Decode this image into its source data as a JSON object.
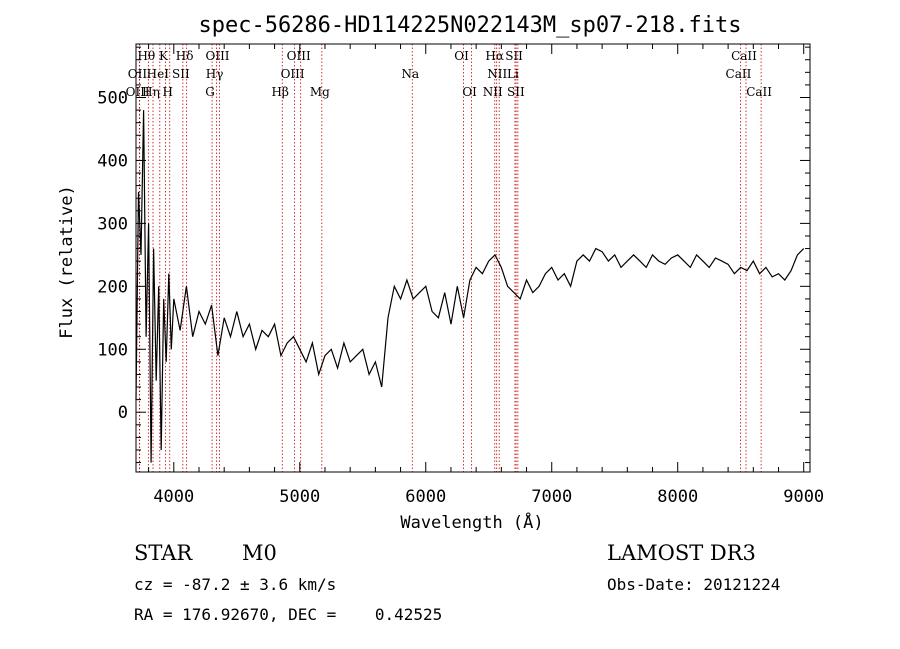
{
  "chart_data": {
    "type": "line",
    "title": "spec-56286-HD114225N022143M_sp07-218.fits",
    "xlabel": "Wavelength (Å)",
    "ylabel": "Flux (relative)",
    "xlim": [
      3700,
      9050
    ],
    "ylim": [
      -95,
      585
    ],
    "xticks": [
      4000,
      5000,
      6000,
      7000,
      8000,
      9000
    ],
    "yticks": [
      0,
      100,
      200,
      300,
      400,
      500
    ],
    "grid": false,
    "series": [
      {
        "x": [
          3700,
          3720,
          3740,
          3760,
          3780,
          3800,
          3820,
          3840,
          3860,
          3880,
          3900,
          3920,
          3940,
          3960,
          3980,
          4000,
          4050,
          4100,
          4150,
          4200,
          4250,
          4300,
          4350,
          4400,
          4450,
          4500,
          4550,
          4600,
          4650,
          4700,
          4750,
          4800,
          4850,
          4900,
          4950,
          5000,
          5050,
          5100,
          5150,
          5200,
          5250,
          5300,
          5350,
          5400,
          5450,
          5500,
          5550,
          5600,
          5650,
          5700,
          5750,
          5800,
          5850,
          5900,
          5950,
          6000,
          6050,
          6100,
          6150,
          6200,
          6250,
          6300,
          6350,
          6400,
          6450,
          6500,
          6550,
          6600,
          6650,
          6700,
          6750,
          6800,
          6850,
          6900,
          6950,
          7000,
          7050,
          7100,
          7150,
          7200,
          7250,
          7300,
          7350,
          7400,
          7450,
          7500,
          7550,
          7600,
          7650,
          7700,
          7750,
          7800,
          7850,
          7900,
          7950,
          8000,
          8050,
          8100,
          8150,
          8200,
          8250,
          8300,
          8350,
          8400,
          8450,
          8500,
          8550,
          8600,
          8650,
          8700,
          8750,
          8800,
          8850,
          8900,
          8950,
          9000
        ],
        "y": [
          20,
          350,
          250,
          480,
          120,
          300,
          -80,
          260,
          50,
          200,
          -60,
          180,
          80,
          220,
          100,
          180,
          130,
          200,
          120,
          160,
          140,
          170,
          90,
          150,
          120,
          160,
          120,
          140,
          100,
          130,
          120,
          140,
          90,
          110,
          120,
          100,
          80,
          110,
          60,
          90,
          100,
          70,
          110,
          80,
          90,
          100,
          60,
          80,
          40,
          150,
          200,
          180,
          210,
          180,
          190,
          200,
          160,
          150,
          190,
          140,
          200,
          150,
          210,
          230,
          220,
          240,
          250,
          230,
          200,
          190,
          180,
          210,
          190,
          200,
          220,
          230,
          210,
          220,
          200,
          240,
          250,
          240,
          260,
          255,
          240,
          250,
          230,
          240,
          250,
          240,
          230,
          250,
          240,
          235,
          245,
          250,
          240,
          230,
          250,
          240,
          230,
          245,
          240,
          235,
          220,
          230,
          225,
          240,
          220,
          230,
          215,
          220,
          210,
          225,
          250,
          260
        ]
      }
    ],
    "lines": [
      {
        "name": "Hθ",
        "x": 3798,
        "row": 0
      },
      {
        "name": "K",
        "x": 3934,
        "row": 0
      },
      {
        "name": "Hδ",
        "x": 4102,
        "row": 0
      },
      {
        "name": "OIII",
        "x": 4363,
        "row": 0
      },
      {
        "name": "OIII",
        "x": 5007,
        "row": 0
      },
      {
        "name": "OI",
        "x": 6300,
        "row": 0
      },
      {
        "name": "Hα",
        "x": 6563,
        "row": 0
      },
      {
        "name": "SII",
        "x": 6717,
        "row": 0
      },
      {
        "name": "CaII",
        "x": 8542,
        "row": 0
      },
      {
        "name": "OII",
        "x": 3727,
        "row": 1
      },
      {
        "name": "HeI",
        "x": 3889,
        "row": 1
      },
      {
        "name": "SII",
        "x": 4072,
        "row": 1
      },
      {
        "name": "Hγ",
        "x": 4340,
        "row": 1
      },
      {
        "name": "OIII",
        "x": 4959,
        "row": 1
      },
      {
        "name": "Na",
        "x": 5893,
        "row": 1
      },
      {
        "name": "NII",
        "x": 6583,
        "row": 1
      },
      {
        "name": "Li",
        "x": 6708,
        "row": 1
      },
      {
        "name": "CaII",
        "x": 8498,
        "row": 1
      },
      {
        "name": "OIII",
        "x": 3729,
        "row": 2
      },
      {
        "name": "Hη",
        "x": 3835,
        "row": 2
      },
      {
        "name": "H",
        "x": 3968,
        "row": 2
      },
      {
        "name": "G",
        "x": 4304,
        "row": 2
      },
      {
        "name": "Hβ",
        "x": 4861,
        "row": 2
      },
      {
        "name": "Mg",
        "x": 5175,
        "row": 2
      },
      {
        "name": "OI",
        "x": 6364,
        "row": 2
      },
      {
        "name": "NII",
        "x": 6548,
        "row": 2
      },
      {
        "name": "SII",
        "x": 6731,
        "row": 2
      },
      {
        "name": "CaII",
        "x": 8662,
        "row": 2
      }
    ],
    "line_marker_color": "#cc0000"
  },
  "info": {
    "class": "STAR",
    "subclass": "M0",
    "survey": "LAMOST DR3",
    "redshift": "cz = -87.2 ± 3.6 km/s",
    "obs_date": "Obs-Date: 20121224",
    "coords": "RA = 176.92670, DEC =    0.42525"
  }
}
